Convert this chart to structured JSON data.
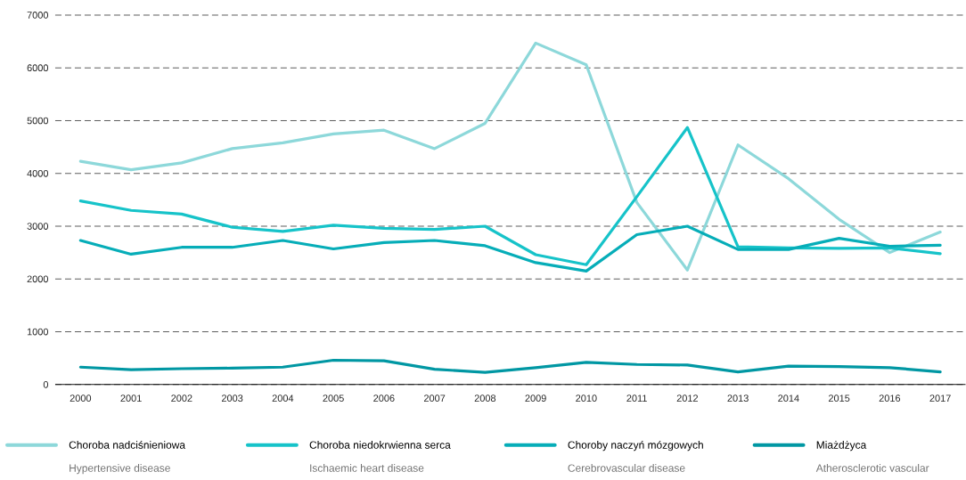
{
  "chart_data": {
    "type": "line",
    "x": [
      2000,
      2001,
      2002,
      2003,
      2004,
      2005,
      2006,
      2007,
      2008,
      2009,
      2010,
      2011,
      2012,
      2013,
      2014,
      2015,
      2016,
      2017
    ],
    "xlim": [
      1999.5,
      2017.5
    ],
    "xticks": [
      2000,
      2001,
      2002,
      2003,
      2004,
      2005,
      2006,
      2007,
      2008,
      2009,
      2010,
      2011,
      2012,
      2013,
      2014,
      2015,
      2016,
      2017
    ],
    "ylim": [
      0,
      7000
    ],
    "yticks": [
      0,
      1000,
      2000,
      3000,
      4000,
      5000,
      6000,
      7000
    ],
    "grid": "y",
    "legend": "bottom",
    "marker": "none",
    "line_style": "solid",
    "series": [
      {
        "name": "Choroba nadciśnieniowa",
        "color": "#8dd8da",
        "values": [
          4230,
          4070,
          4200,
          4470,
          4580,
          4750,
          4820,
          4470,
          4950,
          6470,
          6060,
          3450,
          2170,
          4540,
          3900,
          3130,
          2500,
          2890
        ]
      },
      {
        "name": "Choroba niedokrwienna serca",
        "color": "#16c3c9",
        "values": [
          3480,
          3300,
          3230,
          2980,
          2900,
          3020,
          2960,
          2940,
          3000,
          2460,
          2270,
          3560,
          4870,
          2610,
          2590,
          2580,
          2590,
          2480
        ]
      },
      {
        "name": "Choroby naczyń mózgowych",
        "color": "#06adb8",
        "values": [
          2730,
          2470,
          2600,
          2600,
          2730,
          2570,
          2690,
          2730,
          2630,
          2310,
          2150,
          2840,
          3000,
          2560,
          2560,
          2770,
          2620,
          2640
        ]
      },
      {
        "name": "Miażdżyca",
        "color": "#0097a3",
        "values": [
          330,
          280,
          300,
          310,
          330,
          460,
          450,
          290,
          230,
          320,
          420,
          380,
          370,
          240,
          350,
          340,
          320,
          240
        ]
      }
    ],
    "annotations": [
      "Hypertensive disease",
      "Ischaemic heart disease",
      "Cerebrovascular disease",
      "Atherosclerotic vascular"
    ]
  }
}
